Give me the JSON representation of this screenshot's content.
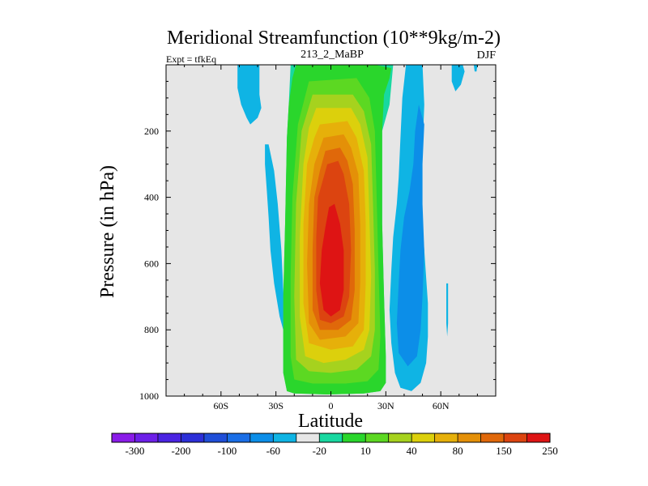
{
  "chart_data": {
    "type": "heatmap",
    "title": "Meridional Streamfunction (10**9kg/m-2)",
    "left_label": "Expt = tfkEq",
    "center_label": "213_2_MaBP",
    "right_label": "DJF",
    "xlabel": "Latitude",
    "ylabel": "Pressure (in hPa)",
    "xlim": [
      -90,
      90
    ],
    "ylim": [
      1000,
      0
    ],
    "x_ticks": [
      {
        "value": -60,
        "label": "60S"
      },
      {
        "value": -30,
        "label": "30S"
      },
      {
        "value": 0,
        "label": "0"
      },
      {
        "value": 30,
        "label": "30N"
      },
      {
        "value": 60,
        "label": "60N"
      }
    ],
    "y_ticks": [
      {
        "value": 200,
        "label": "200"
      },
      {
        "value": 400,
        "label": "400"
      },
      {
        "value": 600,
        "label": "600"
      },
      {
        "value": 800,
        "label": "800"
      },
      {
        "value": 1000,
        "label": "1000"
      }
    ],
    "background_color": "#e6e6e6",
    "colorbar": {
      "colors": [
        "#8a1ce8",
        "#6d20e8",
        "#4a24e2",
        "#2c2fd8",
        "#1f4ed8",
        "#1a6ee6",
        "#0c8ee8",
        "#0fb4e4",
        "#e6e6e6",
        "#18d8a0",
        "#2ad62c",
        "#5cd822",
        "#a6d21e",
        "#dcd00c",
        "#e6b00a",
        "#e49008",
        "#e0680a",
        "#dc4410",
        "#de1414"
      ],
      "labels": [
        {
          "text": "-300",
          "index": 1
        },
        {
          "text": "-200",
          "index": 3
        },
        {
          "text": "-100",
          "index": 5
        },
        {
          "text": "-60",
          "index": 7
        },
        {
          "text": "-20",
          "index": 9
        },
        {
          "text": "10",
          "index": 11
        },
        {
          "text": "40",
          "index": 13
        },
        {
          "text": "80",
          "index": 15
        },
        {
          "text": "150",
          "index": 17
        },
        {
          "text": "250",
          "index": 19
        }
      ]
    },
    "regions": [
      {
        "level": "-20",
        "color": "#0fb4e4",
        "points": [
          [
            -51,
            0
          ],
          [
            -39,
            0
          ],
          [
            -39,
            90
          ],
          [
            -38,
            130
          ],
          [
            -40,
            160
          ],
          [
            -44,
            180
          ],
          [
            -46,
            160
          ],
          [
            -49,
            120
          ],
          [
            -51,
            70
          ]
        ]
      },
      {
        "level": "-20",
        "color": "#0fb4e4",
        "points": [
          [
            -36,
            240
          ],
          [
            -34,
            240
          ],
          [
            -31,
            320
          ],
          [
            -29,
            420
          ],
          [
            -27,
            560
          ],
          [
            -26,
            680
          ],
          [
            -25,
            760
          ],
          [
            -26,
            800
          ],
          [
            -28,
            760
          ],
          [
            -31,
            660
          ],
          [
            -33,
            560
          ],
          [
            -34,
            460
          ],
          [
            -35,
            380
          ],
          [
            -36,
            300
          ]
        ]
      },
      {
        "level": "-20",
        "color": "#0fb4e4",
        "points": [
          [
            41,
            0
          ],
          [
            50,
            0
          ],
          [
            51,
            120
          ],
          [
            50,
            260
          ],
          [
            49,
            400
          ],
          [
            51,
            560
          ],
          [
            53,
            720
          ],
          [
            53,
            820
          ],
          [
            52,
            900
          ],
          [
            49,
            960
          ],
          [
            44,
            985
          ],
          [
            38,
            975
          ],
          [
            35,
            930
          ],
          [
            33,
            840
          ],
          [
            32,
            740
          ],
          [
            33,
            620
          ],
          [
            34,
            520
          ],
          [
            36,
            420
          ],
          [
            37,
            340
          ],
          [
            38,
            220
          ],
          [
            39,
            100
          ]
        ]
      },
      {
        "level": "-60",
        "color": "#0c8ee8",
        "points": [
          [
            48,
            120
          ],
          [
            51,
            180
          ],
          [
            50,
            300
          ],
          [
            50,
            420
          ],
          [
            51,
            560
          ],
          [
            50,
            700
          ],
          [
            49,
            800
          ],
          [
            47,
            880
          ],
          [
            42,
            910
          ],
          [
            37,
            870
          ],
          [
            36,
            780
          ],
          [
            37,
            660
          ],
          [
            38,
            560
          ],
          [
            40,
            460
          ],
          [
            43,
            380
          ],
          [
            45,
            300
          ],
          [
            46,
            200
          ]
        ]
      },
      {
        "level": "-20",
        "color": "#0fb4e4",
        "points": [
          [
            66,
            0
          ],
          [
            72,
            0
          ],
          [
            73,
            20
          ],
          [
            71,
            60
          ],
          [
            68,
            80
          ],
          [
            66,
            50
          ]
        ]
      },
      {
        "level": "-20",
        "color": "#0fb4e4",
        "points": [
          [
            63,
            660
          ],
          [
            64,
            660
          ],
          [
            64,
            780
          ],
          [
            63.5,
            820
          ],
          [
            63,
            780
          ]
        ]
      },
      {
        "level": "-20",
        "color": "#0fb4e4",
        "points": [
          [
            78,
            0
          ],
          [
            80,
            0
          ],
          [
            79.5,
            20
          ],
          [
            78.5,
            20
          ]
        ]
      },
      {
        "level": "10",
        "color": "#18d8a0",
        "points": [
          [
            -22,
            0
          ],
          [
            34,
            0
          ],
          [
            32,
            120
          ],
          [
            28,
            200
          ],
          [
            28,
            480
          ],
          [
            29,
            700
          ],
          [
            30,
            880
          ],
          [
            30,
            960
          ],
          [
            27,
            985
          ],
          [
            18,
            992
          ],
          [
            -2,
            995
          ],
          [
            -20,
            992
          ],
          [
            -24,
            985
          ],
          [
            -26,
            930
          ],
          [
            -26,
            700
          ],
          [
            -25,
            480
          ],
          [
            -24,
            220
          ],
          [
            -23,
            120
          ]
        ]
      },
      {
        "level": "40",
        "color": "#2ad62c",
        "points": [
          [
            -19,
            0
          ],
          [
            19,
            0
          ],
          [
            24,
            0
          ],
          [
            33,
            10
          ],
          [
            32,
            40
          ],
          [
            29,
            90
          ],
          [
            28,
            200
          ],
          [
            28,
            480
          ],
          [
            29,
            700
          ],
          [
            30,
            880
          ],
          [
            30,
            960
          ],
          [
            27,
            985
          ],
          [
            18,
            992
          ],
          [
            -2,
            995
          ],
          [
            -20,
            992
          ],
          [
            -24,
            985
          ],
          [
            -26,
            930
          ],
          [
            -26,
            700
          ],
          [
            -25,
            480
          ],
          [
            -24,
            220
          ],
          [
            -23,
            120
          ],
          [
            -21,
            40
          ]
        ]
      },
      {
        "level": "80",
        "color": "#5cd822",
        "points": [
          [
            -12,
            50
          ],
          [
            14,
            40
          ],
          [
            21,
            100
          ],
          [
            24,
            200
          ],
          [
            25,
            400
          ],
          [
            26,
            620
          ],
          [
            27,
            820
          ],
          [
            26,
            920
          ],
          [
            20,
            955
          ],
          [
            8,
            962
          ],
          [
            -10,
            962
          ],
          [
            -20,
            950
          ],
          [
            -22,
            880
          ],
          [
            -22,
            640
          ],
          [
            -21,
            400
          ],
          [
            -18,
            180
          ]
        ]
      },
      {
        "level": "80",
        "color": "#a6d21e",
        "points": [
          [
            -10,
            90
          ],
          [
            12,
            90
          ],
          [
            18,
            140
          ],
          [
            22,
            240
          ],
          [
            23,
            420
          ],
          [
            24,
            620
          ],
          [
            24,
            800
          ],
          [
            22,
            880
          ],
          [
            14,
            920
          ],
          [
            0,
            930
          ],
          [
            -12,
            925
          ],
          [
            -19,
            890
          ],
          [
            -20,
            700
          ],
          [
            -19,
            420
          ],
          [
            -16,
            200
          ]
        ]
      },
      {
        "level": "150",
        "color": "#dcd00c",
        "points": [
          [
            -8,
            130
          ],
          [
            11,
            130
          ],
          [
            16,
            180
          ],
          [
            20,
            280
          ],
          [
            21,
            460
          ],
          [
            22,
            640
          ],
          [
            21,
            800
          ],
          [
            18,
            860
          ],
          [
            8,
            890
          ],
          [
            -4,
            900
          ],
          [
            -14,
            880
          ],
          [
            -17,
            760
          ],
          [
            -17,
            520
          ],
          [
            -15,
            300
          ],
          [
            -12,
            190
          ]
        ]
      },
      {
        "level": "150",
        "color": "#e6b00a",
        "points": [
          [
            -6,
            180
          ],
          [
            9,
            170
          ],
          [
            14,
            220
          ],
          [
            18,
            320
          ],
          [
            19,
            480
          ],
          [
            19,
            660
          ],
          [
            18,
            800
          ],
          [
            12,
            850
          ],
          [
            0,
            860
          ],
          [
            -12,
            840
          ],
          [
            -15,
            720
          ],
          [
            -15,
            480
          ],
          [
            -13,
            300
          ],
          [
            -9,
            220
          ]
        ]
      },
      {
        "level": "250",
        "color": "#e49008",
        "points": [
          [
            -4,
            220
          ],
          [
            7,
            210
          ],
          [
            11,
            250
          ],
          [
            15,
            330
          ],
          [
            16,
            480
          ],
          [
            16,
            660
          ],
          [
            15,
            780
          ],
          [
            8,
            820
          ],
          [
            -6,
            830
          ],
          [
            -12,
            780
          ],
          [
            -13,
            600
          ],
          [
            -12,
            420
          ],
          [
            -9,
            300
          ]
        ]
      },
      {
        "level": "250",
        "color": "#e0680a",
        "points": [
          [
            -3,
            260
          ],
          [
            5,
            250
          ],
          [
            9,
            290
          ],
          [
            12,
            360
          ],
          [
            13,
            500
          ],
          [
            13,
            680
          ],
          [
            11,
            770
          ],
          [
            4,
            800
          ],
          [
            -6,
            800
          ],
          [
            -10,
            740
          ],
          [
            -10,
            560
          ],
          [
            -9,
            400
          ],
          [
            -6,
            320
          ]
        ]
      },
      {
        "level": "250",
        "color": "#dc4410",
        "points": [
          [
            -2,
            300
          ],
          [
            4,
            290
          ],
          [
            7,
            330
          ],
          [
            10,
            420
          ],
          [
            11,
            560
          ],
          [
            10,
            700
          ],
          [
            7,
            760
          ],
          [
            0,
            780
          ],
          [
            -6,
            770
          ],
          [
            -8,
            680
          ],
          [
            -8,
            520
          ],
          [
            -7,
            400
          ]
        ]
      },
      {
        "level": "250",
        "color": "#de1414",
        "points": [
          [
            -1,
            430
          ],
          [
            2,
            420
          ],
          [
            5,
            480
          ],
          [
            7,
            560
          ],
          [
            7,
            680
          ],
          [
            5,
            740
          ],
          [
            0,
            760
          ],
          [
            -4,
            740
          ],
          [
            -6,
            660
          ],
          [
            -5,
            560
          ],
          [
            -3,
            490
          ]
        ]
      }
    ]
  }
}
